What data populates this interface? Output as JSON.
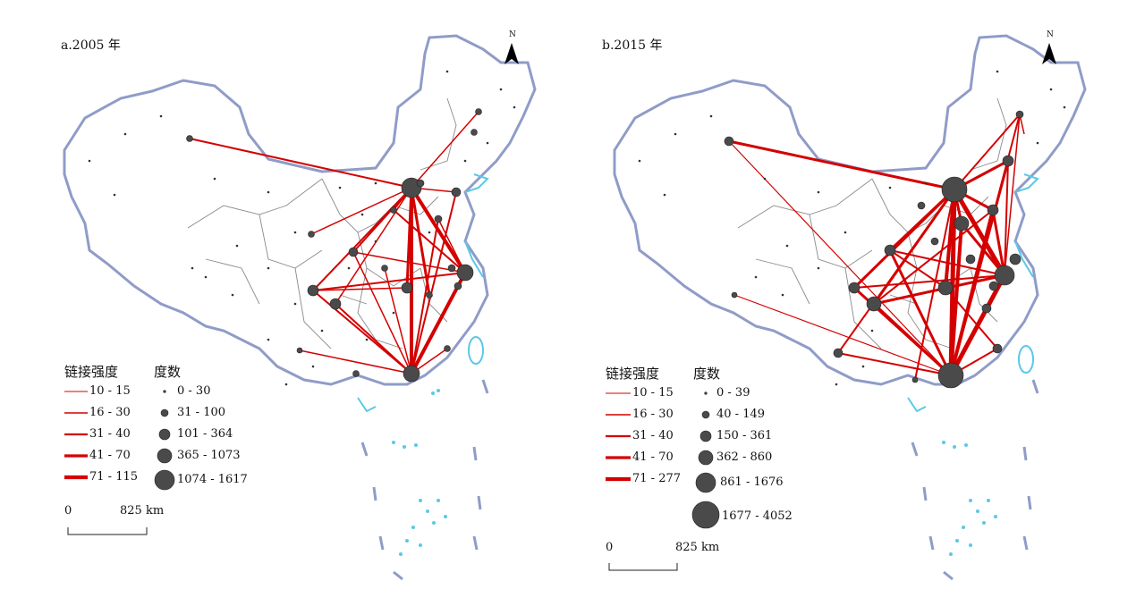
{
  "panels": [
    {
      "title": "a.2005 年",
      "legend": {
        "links_title": "链接强度",
        "degree_title": "度数",
        "links": [
          "10 - 15",
          "16 - 30",
          "31 - 40",
          "41 - 70",
          "71 - 115"
        ],
        "degree": [
          "0 - 30",
          "31 - 100",
          "101 - 364",
          "365 - 1073",
          "1074 - 1617"
        ]
      },
      "scale": {
        "zero": "0",
        "distance": "825 km"
      },
      "north": "N"
    },
    {
      "title": "b.2015 年",
      "legend": {
        "links_title": "链接强度",
        "degree_title": "度数",
        "links": [
          "10 - 15",
          "16 - 30",
          "31 - 40",
          "41 - 70",
          "71 - 277"
        ],
        "degree": [
          "0 - 39",
          "40 - 149",
          "150 - 361",
          "362 - 860",
          "861 - 1676",
          "1677 - 4052"
        ]
      },
      "scale": {
        "zero": "0",
        "distance": "825 km"
      },
      "north": "N"
    }
  ],
  "colors": {
    "link": "#d40000",
    "node": "#4a4a4a",
    "border": "#8f9cc8",
    "water": "#5bc8e6",
    "province": "#8a8a8a"
  }
}
